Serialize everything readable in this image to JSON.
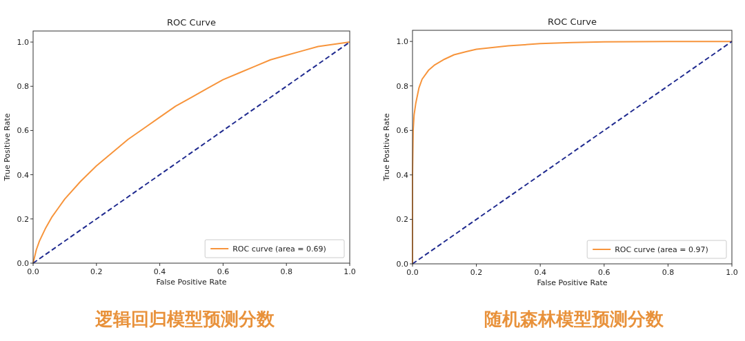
{
  "chart_data": [
    {
      "type": "line",
      "title": "ROC Curve",
      "xlabel": "False Positive Rate",
      "ylabel": "True Positive Rate",
      "xlim": [
        0,
        1
      ],
      "ylim": [
        0,
        1.05
      ],
      "xticks": [
        {
          "value": 0,
          "label": "0.0"
        },
        {
          "value": 0.2,
          "label": "0.2"
        },
        {
          "value": 0.4,
          "label": "0.4"
        },
        {
          "value": 0.6,
          "label": "0.6"
        },
        {
          "value": 0.8,
          "label": "0.8"
        },
        {
          "value": 1,
          "label": "1.0"
        }
      ],
      "yticks": [
        {
          "value": 0,
          "label": "0.0"
        },
        {
          "value": 0.2,
          "label": "0.2"
        },
        {
          "value": 0.4,
          "label": "0.4"
        },
        {
          "value": 0.6,
          "label": "0.6"
        },
        {
          "value": 0.8,
          "label": "0.8"
        },
        {
          "value": 1,
          "label": "1.0"
        }
      ],
      "legend": "bottom right",
      "annotations": [
        "逻辑回归模型预测分数"
      ],
      "series": [
        {
          "name": "ROC curve (area = 0.69)",
          "color": "#f7943b",
          "line_style": "solid",
          "x": [
            0,
            0.01,
            0.02,
            0.04,
            0.06,
            0.08,
            0.1,
            0.15,
            0.2,
            0.25,
            0.3,
            0.35,
            0.4,
            0.45,
            0.5,
            0.55,
            0.6,
            0.65,
            0.7,
            0.75,
            0.8,
            0.85,
            0.9,
            0.95,
            1
          ],
          "values": [
            0,
            0.06,
            0.1,
            0.16,
            0.21,
            0.25,
            0.29,
            0.37,
            0.44,
            0.5,
            0.56,
            0.61,
            0.66,
            0.71,
            0.75,
            0.79,
            0.83,
            0.86,
            0.89,
            0.92,
            0.94,
            0.96,
            0.98,
            0.99,
            1
          ]
        },
        {
          "color": "#1f2a8f",
          "line_style": "dashed",
          "x": [
            0,
            1
          ],
          "values": [
            0,
            1
          ]
        }
      ]
    },
    {
      "type": "line",
      "title": "ROC Curve",
      "xlabel": "False Positive Rate",
      "ylabel": "True Positive Rate",
      "xlim": [
        0,
        1
      ],
      "ylim": [
        0,
        1.05
      ],
      "xticks": [
        {
          "value": 0,
          "label": "0.0"
        },
        {
          "value": 0.2,
          "label": "0.2"
        },
        {
          "value": 0.4,
          "label": "0.4"
        },
        {
          "value": 0.6,
          "label": "0.6"
        },
        {
          "value": 0.8,
          "label": "0.8"
        },
        {
          "value": 1,
          "label": "1.0"
        }
      ],
      "yticks": [
        {
          "value": 0,
          "label": "0.0"
        },
        {
          "value": 0.2,
          "label": "0.2"
        },
        {
          "value": 0.4,
          "label": "0.4"
        },
        {
          "value": 0.6,
          "label": "0.6"
        },
        {
          "value": 0.8,
          "label": "0.8"
        },
        {
          "value": 1,
          "label": "1.0"
        }
      ],
      "legend": "bottom right",
      "annotations": [
        "随机森林模型预测分数"
      ],
      "series": [
        {
          "name": "ROC curve (area = 0.97)",
          "color": "#f7943b",
          "line_style": "solid",
          "x": [
            0,
            0,
            0.002,
            0.005,
            0.01,
            0.02,
            0.03,
            0.05,
            0.07,
            0.1,
            0.13,
            0.17,
            0.2,
            0.3,
            0.4,
            0.5,
            0.6,
            0.8,
            1
          ],
          "values": [
            0,
            0.4,
            0.6,
            0.67,
            0.72,
            0.79,
            0.83,
            0.87,
            0.895,
            0.92,
            0.94,
            0.955,
            0.965,
            0.98,
            0.99,
            0.995,
            0.998,
            1,
            1
          ]
        },
        {
          "color": "#1f2a8f",
          "line_style": "dashed",
          "x": [
            0,
            1
          ],
          "values": [
            0,
            1
          ]
        }
      ]
    }
  ]
}
